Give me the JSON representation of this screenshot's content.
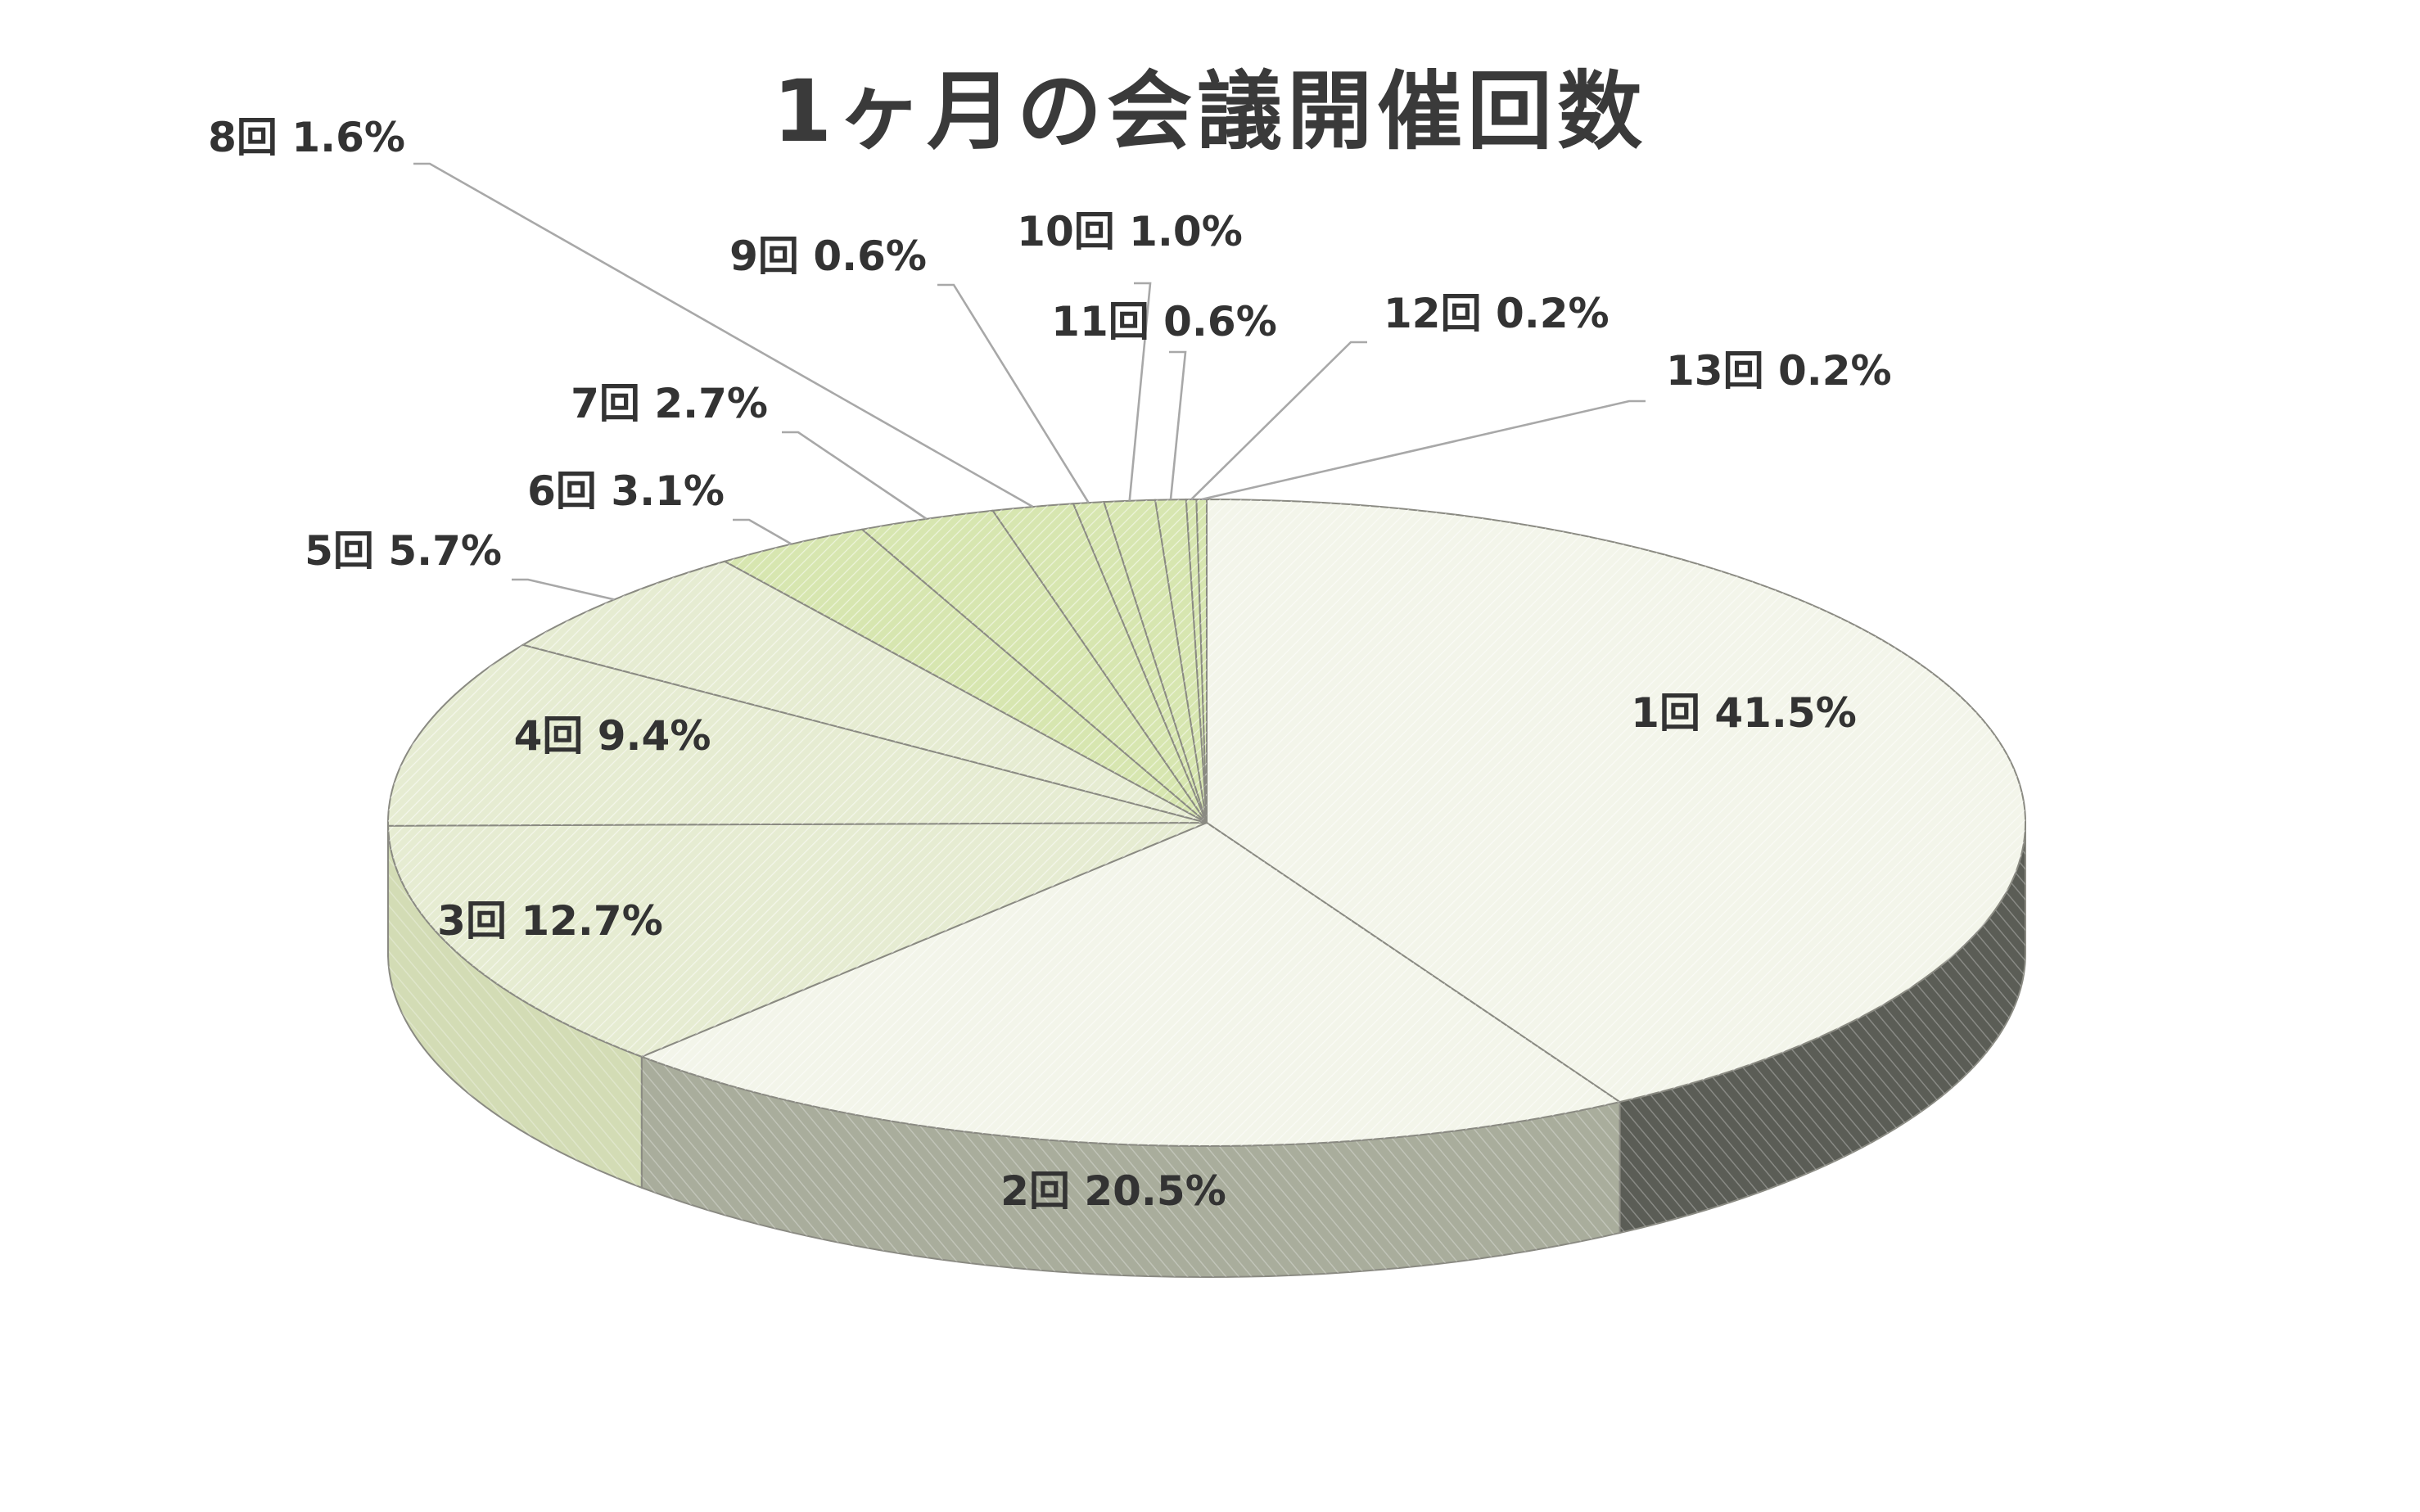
{
  "chart_data": {
    "type": "pie",
    "title": "1ヶ月の会議開催回数",
    "categories": [
      "1回",
      "2回",
      "3回",
      "4回",
      "5回",
      "6回",
      "7回",
      "8回",
      "9回",
      "10回",
      "11回",
      "12回",
      "13回"
    ],
    "values": [
      41.5,
      20.5,
      12.7,
      9.4,
      5.7,
      3.1,
      2.7,
      1.6,
      0.6,
      1.0,
      0.6,
      0.2,
      0.2
    ],
    "value_unit": "%",
    "labels": [
      "1回 41.5%",
      "2回 20.5%",
      "3回 12.7%",
      "4回 9.4%",
      "5回 5.7%",
      "6回 3.1%",
      "7回 2.7%",
      "8回 1.6%",
      "9回 0.6%",
      "10回 1.0%",
      "11回 0.6%",
      "12回 0.2%",
      "13回 0.2%"
    ],
    "style": "3d-pie",
    "start_angle": "12 o'clock",
    "direction": "clockwise",
    "legend": "none",
    "colors": {
      "top_light": "#f3f5ea",
      "top_mid": "#e6ecd2",
      "top_green": "#d7e6b0",
      "side_dark": "#5b5d56",
      "side_mid": "#a9ad9c",
      "side_light": "#d3dcb5",
      "outline": "#8a8a82",
      "text": "#333333",
      "title": "#3a3a3a"
    }
  }
}
